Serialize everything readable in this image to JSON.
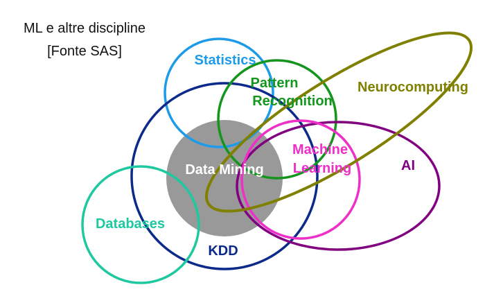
{
  "caption": {
    "line1": "ML e altre discipline",
    "line2": "[Fonte SAS]"
  },
  "labels": {
    "statistics": "Statistics",
    "pattern_line1": "Pattern",
    "pattern_line2": "Recognition",
    "neurocomputing": "Neurocomputing",
    "machine_line1": "Machine",
    "machine_line2": "Learning",
    "data_mining": "Data Mining",
    "ai": "AI",
    "databases": "Databases",
    "kdd": "KDD"
  },
  "colors": {
    "statistics": "#1e9be8",
    "pattern_recognition": "#14961e",
    "neurocomputing": "#808000",
    "machine_learning": "#ee30c8",
    "data_mining_fill": "#999999",
    "data_mining_text": "#ffffff",
    "ai": "#800080",
    "databases": "#1ec8a0",
    "kdd": "#0c2a8a"
  }
}
